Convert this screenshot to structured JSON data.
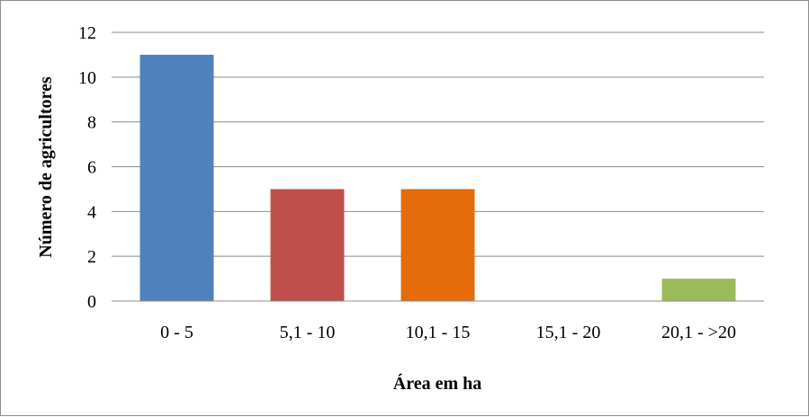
{
  "chart_data": {
    "type": "bar",
    "categories": [
      "0 - 5",
      "5,1 - 10",
      "10,1 - 15",
      "15,1 - 20",
      "20,1 - >20"
    ],
    "values": [
      11,
      5,
      5,
      0,
      1
    ],
    "colors": [
      "#4f81bd",
      "#c0504d",
      "#e46c0a",
      "#8064a2",
      "#9bbb59"
    ],
    "title": "",
    "xlabel": "Área em ha",
    "ylabel": "Número de agricultores",
    "ylim": [
      0,
      12
    ],
    "yticks": [
      0,
      2,
      4,
      6,
      8,
      10,
      12
    ],
    "grid": true,
    "legend": "none"
  }
}
